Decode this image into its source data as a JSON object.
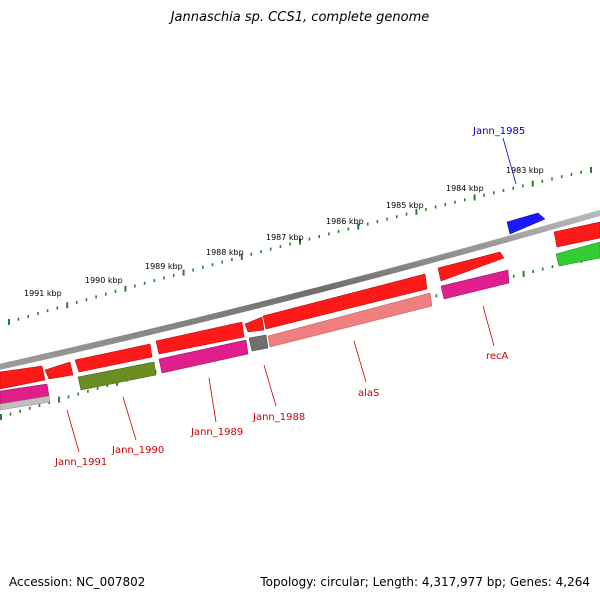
{
  "title": "Jannaschia sp. CCS1, complete genome",
  "footer": {
    "accession": "Accession: NC_007802",
    "topology": "Topology: circular; Length: 4,317,977 bp; Genes: 4,264"
  },
  "colors": {
    "backbone": "#808080",
    "ticks": "#2e7d2e",
    "forward_gene": "#ff1a1a",
    "reverse_cds": "#e01e8c",
    "alaS": "#f08080",
    "jann1990": "#6b8e23",
    "pseudo": "#707070",
    "jann1985": "#1a1aff",
    "green_gene": "#33cc33",
    "label_red": "#cc0000",
    "label_blue": "#0000cc"
  },
  "tick_labels": [
    "1983 kbp",
    "1984 kbp",
    "1985 kbp",
    "1986 kbp",
    "1987 kbp",
    "1988 kbp",
    "1989 kbp",
    "1990 kbp",
    "1991 kbp"
  ],
  "gene_labels": {
    "jann1985": "Jann_1985",
    "reca": "recA",
    "alas": "alaS",
    "jann1988": "Jann_1988",
    "jann1989": "Jann_1989",
    "jann1990": "Jann_1990",
    "jann1991": "Jann_1991"
  }
}
